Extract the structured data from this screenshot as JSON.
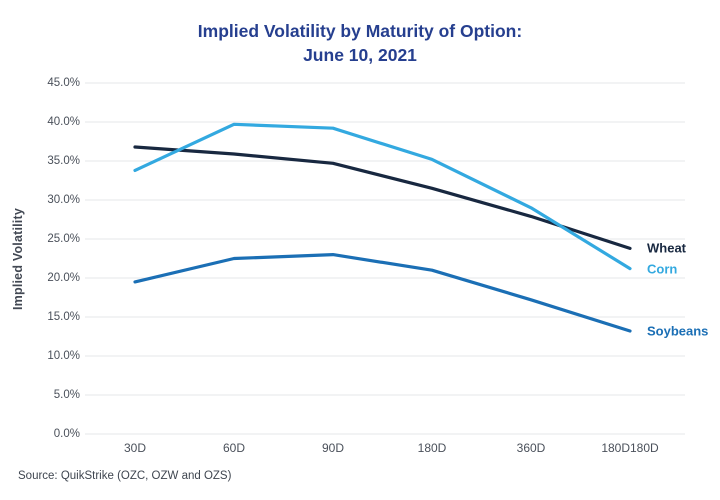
{
  "page": {
    "title_line1": "Implied Volatility by Maturity of Option:",
    "title_line2": "June 10, 2021",
    "source": "Source: QuikStrike (OZC, OZW and OZS)"
  },
  "chart_data": {
    "type": "line",
    "title": "Implied Volatility by Maturity of Option: June 10, 2021",
    "categories": [
      "30D",
      "60D",
      "90D",
      "180D",
      "360D",
      "180D180D"
    ],
    "series": [
      {
        "name": "Wheat",
        "color": "#182840",
        "values": [
          36.8,
          35.9,
          34.7,
          31.5,
          27.9,
          23.8
        ]
      },
      {
        "name": "Corn",
        "color": "#33a9e0",
        "values": [
          33.8,
          39.7,
          39.2,
          35.2,
          29.0,
          21.2
        ]
      },
      {
        "name": "Soybeans",
        "color": "#1b6fb5",
        "values": [
          19.5,
          22.5,
          23.0,
          21.0,
          17.2,
          13.2
        ]
      }
    ],
    "xlabel": "",
    "ylabel": "Implied Volatility",
    "ylim": [
      0,
      45
    ],
    "ytick_step": 5,
    "yticks": [
      "45.0%",
      "40.0%",
      "35.0%",
      "30.0%",
      "25.0%",
      "20.0%",
      "15.0%",
      "10.0%",
      "5.0%",
      "0.0%"
    ],
    "grid": true,
    "gridline_color": "#e6e7e9",
    "legend_position": "line-end-labels-right",
    "background": "#ffffff"
  }
}
